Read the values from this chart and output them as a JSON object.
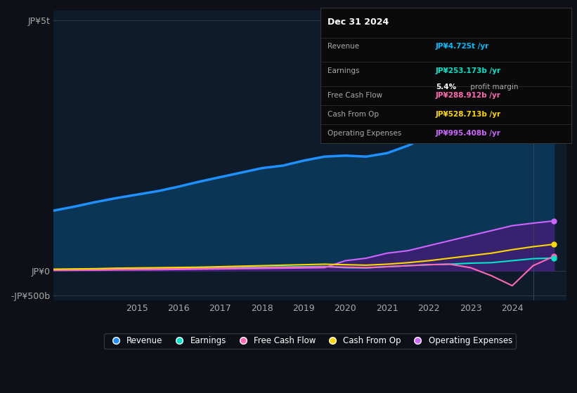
{
  "background_color": "#0d1117",
  "plot_bg_color": "#0d1b2a",
  "info_box": {
    "bg_color": "#0a0a0a",
    "border_color": "#333333",
    "date": "Dec 31 2024"
  },
  "years": [
    2013,
    2013.5,
    2014,
    2014.5,
    2015,
    2015.5,
    2016,
    2016.5,
    2017,
    2017.5,
    2018,
    2018.5,
    2019,
    2019.5,
    2020,
    2020.5,
    2021,
    2021.5,
    2022,
    2022.5,
    2023,
    2023.5,
    2024,
    2024.5,
    2025
  ],
  "revenue": [
    1200,
    1280,
    1370,
    1450,
    1520,
    1590,
    1680,
    1780,
    1870,
    1960,
    2050,
    2100,
    2200,
    2280,
    2300,
    2280,
    2350,
    2500,
    2700,
    3100,
    3500,
    3900,
    4200,
    4600,
    4725
  ],
  "earnings": [
    20,
    25,
    30,
    35,
    40,
    45,
    50,
    55,
    60,
    65,
    70,
    75,
    80,
    85,
    60,
    55,
    80,
    100,
    120,
    130,
    150,
    160,
    200,
    240,
    253
  ],
  "free_cash_flow": [
    10,
    15,
    20,
    25,
    30,
    35,
    40,
    45,
    50,
    55,
    60,
    65,
    70,
    80,
    70,
    60,
    80,
    100,
    120,
    130,
    60,
    -100,
    -300,
    100,
    288
  ],
  "cash_from_op": [
    30,
    35,
    40,
    50,
    55,
    60,
    65,
    70,
    80,
    90,
    100,
    110,
    120,
    130,
    120,
    110,
    130,
    160,
    200,
    250,
    300,
    350,
    420,
    480,
    528
  ],
  "op_expenses": [
    5,
    8,
    10,
    15,
    18,
    20,
    25,
    30,
    35,
    40,
    45,
    50,
    55,
    60,
    200,
    250,
    350,
    400,
    500,
    600,
    700,
    800,
    900,
    950,
    995
  ],
  "revenue_color": "#1e90ff",
  "revenue_fill": "#0a3a5c",
  "earnings_color": "#00e5cc",
  "free_cash_flow_color": "#ff69b4",
  "cash_from_op_color": "#ffd700",
  "op_expenses_color": "#cc66ff",
  "op_expenses_fill": "#4a1a7a",
  "ytick_labels": [
    "-JP¥500b",
    "JP¥0",
    "JP¥5t"
  ],
  "ytick_values": [
    -500,
    0,
    5000
  ],
  "xtick_labels": [
    "2015",
    "2016",
    "2017",
    "2018",
    "2019",
    "2020",
    "2021",
    "2022",
    "2023",
    "2024"
  ],
  "xtick_values": [
    2015,
    2016,
    2017,
    2018,
    2019,
    2020,
    2021,
    2022,
    2023,
    2024
  ],
  "ylim": [
    -600,
    5200
  ],
  "xlim": [
    2013,
    2025.3
  ],
  "legend": [
    {
      "label": "Revenue",
      "color": "#1e90ff"
    },
    {
      "label": "Earnings",
      "color": "#00e5cc"
    },
    {
      "label": "Free Cash Flow",
      "color": "#ff69b4"
    },
    {
      "label": "Cash From Op",
      "color": "#ffd700"
    },
    {
      "label": "Operating Expenses",
      "color": "#cc66ff"
    }
  ],
  "info_rows": [
    {
      "label": "Revenue",
      "value": "JP¥4.725t /yr",
      "value_color": "#00bfff",
      "has_sub": false
    },
    {
      "label": "Earnings",
      "value": "JP¥253.173b /yr",
      "value_color": "#00e5cc",
      "has_sub": true,
      "sub_bold": "5.4%",
      "sub_rest": " profit margin"
    },
    {
      "label": "Free Cash Flow",
      "value": "JP¥288.912b /yr",
      "value_color": "#ff69b4",
      "has_sub": false
    },
    {
      "label": "Cash From Op",
      "value": "JP¥528.713b /yr",
      "value_color": "#ffd700",
      "has_sub": false
    },
    {
      "label": "Operating Expenses",
      "value": "JP¥995.408b /yr",
      "value_color": "#cc66ff",
      "has_sub": false
    }
  ]
}
